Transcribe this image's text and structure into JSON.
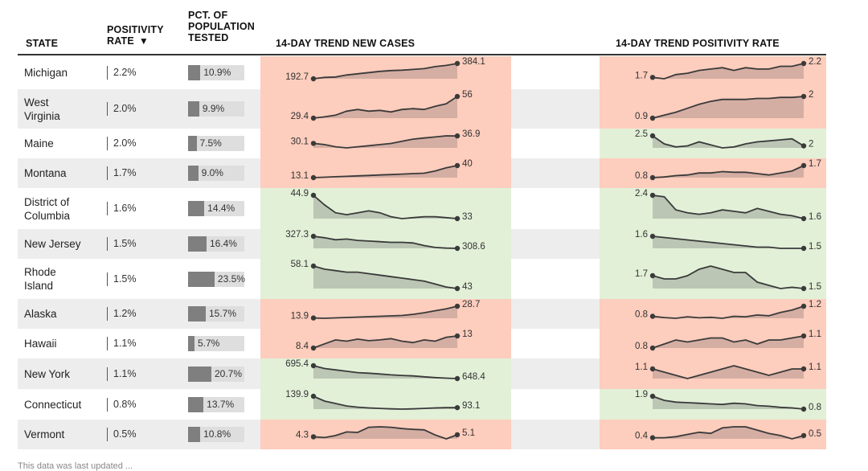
{
  "headers": {
    "state": "STATE",
    "positivity_line1": "POSITIVITY",
    "positivity_line2": "RATE",
    "sort_arrow": "▼",
    "pop_line1": "PCT. OF",
    "pop_line2": "POPULATION",
    "pop_line3": "TESTED",
    "cases_trend": "14-DAY TREND NEW CASES",
    "positivity_trend": "14-DAY TREND POSITIVITY RATE"
  },
  "footer_note": "This data was last updated ...",
  "colors": {
    "increase_bg": "#fdcdbd",
    "decrease_bg": "#e2f0d8",
    "increase_fill": "#d5aea3",
    "decrease_fill": "#bcc6b4",
    "line": "#3a3a3a",
    "bar": "#7f7f7f",
    "bar_bg": "#dedede"
  },
  "chart_data": {
    "type": "table",
    "rows": [
      {
        "state": "Michigan",
        "positivity_rate": "2.2%",
        "pct_tested": "10.9%",
        "pct_tested_value": 10.9,
        "cases_start": "192.7",
        "cases_end": "384.1",
        "cases_trend": "up",
        "cases_series": [
          192.7,
          210,
          215,
          240,
          255,
          270,
          285,
          295,
          300,
          310,
          320,
          345,
          360,
          384.1
        ],
        "pr_start": "1.7",
        "pr_end": "2.2",
        "pr_trend": "up",
        "pr_series": [
          1.7,
          1.65,
          1.8,
          1.85,
          1.95,
          2.0,
          2.05,
          1.95,
          2.05,
          2.0,
          2.0,
          2.1,
          2.1,
          2.2
        ]
      },
      {
        "state": "West\nVirginia",
        "positivity_rate": "2.0%",
        "pct_tested": "9.9%",
        "pct_tested_value": 9.9,
        "cases_start": "29.4",
        "cases_end": "56",
        "cases_trend": "up",
        "cases_series": [
          29.4,
          31,
          33,
          38,
          40,
          38,
          39,
          37,
          40,
          41,
          40,
          44,
          47,
          56
        ],
        "pr_start": "0.9",
        "pr_end": "2",
        "pr_trend": "up",
        "pr_series": [
          0.9,
          1.05,
          1.2,
          1.4,
          1.6,
          1.75,
          1.85,
          1.85,
          1.85,
          1.9,
          1.9,
          1.95,
          1.95,
          2
        ]
      },
      {
        "state": "Maine",
        "positivity_rate": "2.0%",
        "pct_tested": "7.5%",
        "pct_tested_value": 7.5,
        "cases_start": "30.1",
        "cases_end": "36.9",
        "cases_trend": "up",
        "cases_series": [
          30.1,
          29,
          27,
          26,
          27,
          28,
          29,
          30,
          32,
          34,
          35,
          36,
          37,
          36.9
        ],
        "pr_start": "2.5",
        "pr_end": "2",
        "pr_trend": "down",
        "pr_series": [
          2.5,
          2.1,
          1.95,
          2.0,
          2.2,
          2.05,
          1.9,
          1.95,
          2.1,
          2.2,
          2.25,
          2.3,
          2.35,
          2
        ]
      },
      {
        "state": "Montana",
        "positivity_rate": "1.7%",
        "pct_tested": "9.0%",
        "pct_tested_value": 9.0,
        "cases_start": "13.1",
        "cases_end": "40",
        "cases_trend": "up",
        "cases_series": [
          13.1,
          14,
          15,
          16,
          17,
          18,
          19,
          20,
          21,
          22,
          23,
          28,
          35,
          40
        ],
        "pr_start": "0.8",
        "pr_end": "1.7",
        "pr_trend": "up",
        "pr_series": [
          0.8,
          0.85,
          0.95,
          1.0,
          1.15,
          1.15,
          1.25,
          1.2,
          1.2,
          1.1,
          1.0,
          1.15,
          1.3,
          1.7
        ]
      },
      {
        "state": "District of\nColumbia",
        "positivity_rate": "1.6%",
        "pct_tested": "14.4%",
        "pct_tested_value": 14.4,
        "cases_start": "44.9",
        "cases_end": "33",
        "cases_trend": "down",
        "cases_series": [
          44.9,
          40,
          36,
          35,
          36,
          37,
          36,
          34,
          33,
          33.5,
          34,
          34,
          33.5,
          33
        ],
        "pr_start": "2.4",
        "pr_end": "1.6",
        "pr_trend": "down",
        "pr_series": [
          2.4,
          2.35,
          1.9,
          1.8,
          1.75,
          1.8,
          1.9,
          1.85,
          1.8,
          1.95,
          1.85,
          1.75,
          1.7,
          1.6
        ]
      },
      {
        "state": "New Jersey",
        "positivity_rate": "1.5%",
        "pct_tested": "16.4%",
        "pct_tested_value": 16.4,
        "cases_start": "327.3",
        "cases_end": "308.6",
        "cases_trend": "down",
        "cases_series": [
          327.3,
          325,
          322,
          323,
          321,
          320,
          319,
          318,
          318,
          317,
          313,
          310,
          309,
          308.6
        ],
        "pr_start": "1.6",
        "pr_end": "1.5",
        "pr_trend": "down",
        "pr_series": [
          1.6,
          1.59,
          1.58,
          1.57,
          1.56,
          1.55,
          1.54,
          1.53,
          1.52,
          1.51,
          1.51,
          1.5,
          1.5,
          1.5
        ]
      },
      {
        "state": "Rhode\nIsland",
        "positivity_rate": "1.5%",
        "pct_tested": "23.5%",
        "pct_tested_value": 23.5,
        "cases_start": "58.1",
        "cases_end": "43",
        "cases_trend": "down",
        "cases_series": [
          58.1,
          56,
          55,
          54,
          54,
          53,
          52,
          51,
          50,
          49,
          48,
          46,
          44,
          43
        ],
        "pr_start": "1.7",
        "pr_end": "1.5",
        "pr_trend": "down",
        "pr_series": [
          1.7,
          1.65,
          1.65,
          1.7,
          1.8,
          1.85,
          1.8,
          1.75,
          1.75,
          1.6,
          1.55,
          1.5,
          1.52,
          1.5
        ]
      },
      {
        "state": "Alaska",
        "positivity_rate": "1.2%",
        "pct_tested": "15.7%",
        "pct_tested_value": 15.7,
        "cases_start": "13.9",
        "cases_end": "28.7",
        "cases_trend": "up",
        "cases_series": [
          13.9,
          13.5,
          14,
          14.5,
          15,
          15.5,
          16,
          16.5,
          17,
          18.5,
          20.5,
          23,
          25.5,
          28.7
        ],
        "pr_start": "0.8",
        "pr_end": "1.2",
        "pr_trend": "up",
        "pr_series": [
          0.8,
          0.75,
          0.72,
          0.78,
          0.74,
          0.76,
          0.72,
          0.8,
          0.78,
          0.85,
          0.82,
          0.95,
          1.05,
          1.2
        ]
      },
      {
        "state": "Hawaii",
        "positivity_rate": "1.1%",
        "pct_tested": "5.7%",
        "pct_tested_value": 5.7,
        "cases_start": "8.4",
        "cases_end": "13",
        "cases_trend": "up",
        "cases_series": [
          8.4,
          10,
          11.5,
          11,
          11.8,
          11.2,
          11.5,
          12,
          11,
          10.5,
          11.5,
          11,
          12.5,
          13
        ],
        "pr_start": "0.8",
        "pr_end": "1.1",
        "pr_trend": "up",
        "pr_series": [
          0.8,
          0.9,
          1.0,
          0.95,
          1.0,
          1.05,
          1.05,
          0.95,
          1.0,
          0.9,
          1.0,
          1.0,
          1.05,
          1.1
        ]
      },
      {
        "state": "New York",
        "positivity_rate": "1.1%",
        "pct_tested": "20.7%",
        "pct_tested_value": 20.7,
        "cases_start": "695.4",
        "cases_end": "648.4",
        "cases_trend": "down",
        "cases_series": [
          695.4,
          685,
          680,
          675,
          670,
          668,
          665,
          662,
          660,
          658,
          655,
          652,
          650,
          648.4
        ],
        "pr_start": "1.1",
        "pr_end": "1.1",
        "pr_trend": "flat",
        "pr_series": [
          1.1,
          1.09,
          1.08,
          1.07,
          1.08,
          1.09,
          1.1,
          1.11,
          1.1,
          1.09,
          1.08,
          1.09,
          1.1,
          1.1
        ]
      },
      {
        "state": "Connecticut",
        "positivity_rate": "0.8%",
        "pct_tested": "13.7%",
        "pct_tested_value": 13.7,
        "cases_start": "139.9",
        "cases_end": "93.1",
        "cases_trend": "down",
        "cases_series": [
          139.9,
          120,
          110,
          100,
          95,
          92,
          90,
          88,
          87,
          88,
          90,
          92,
          93,
          93.1
        ],
        "pr_start": "1.9",
        "pr_end": "0.8",
        "pr_trend": "down",
        "pr_series": [
          1.9,
          1.55,
          1.4,
          1.35,
          1.3,
          1.25,
          1.2,
          1.3,
          1.25,
          1.1,
          1.05,
          0.95,
          0.9,
          0.8
        ]
      },
      {
        "state": "Vermont",
        "positivity_rate": "0.5%",
        "pct_tested": "10.8%",
        "pct_tested_value": 10.8,
        "cases_start": "4.3",
        "cases_end": "5.1",
        "cases_trend": "up",
        "cases_series": [
          4.3,
          4.0,
          4.8,
          6.2,
          6.0,
          8.0,
          8.2,
          8.0,
          7.5,
          7.2,
          7.0,
          5.0,
          3.5,
          5.1
        ],
        "pr_start": "0.4",
        "pr_end": "0.5",
        "pr_trend": "up",
        "pr_series": [
          0.4,
          0.4,
          0.45,
          0.55,
          0.65,
          0.6,
          0.85,
          0.9,
          0.9,
          0.75,
          0.6,
          0.5,
          0.35,
          0.5
        ]
      }
    ]
  }
}
